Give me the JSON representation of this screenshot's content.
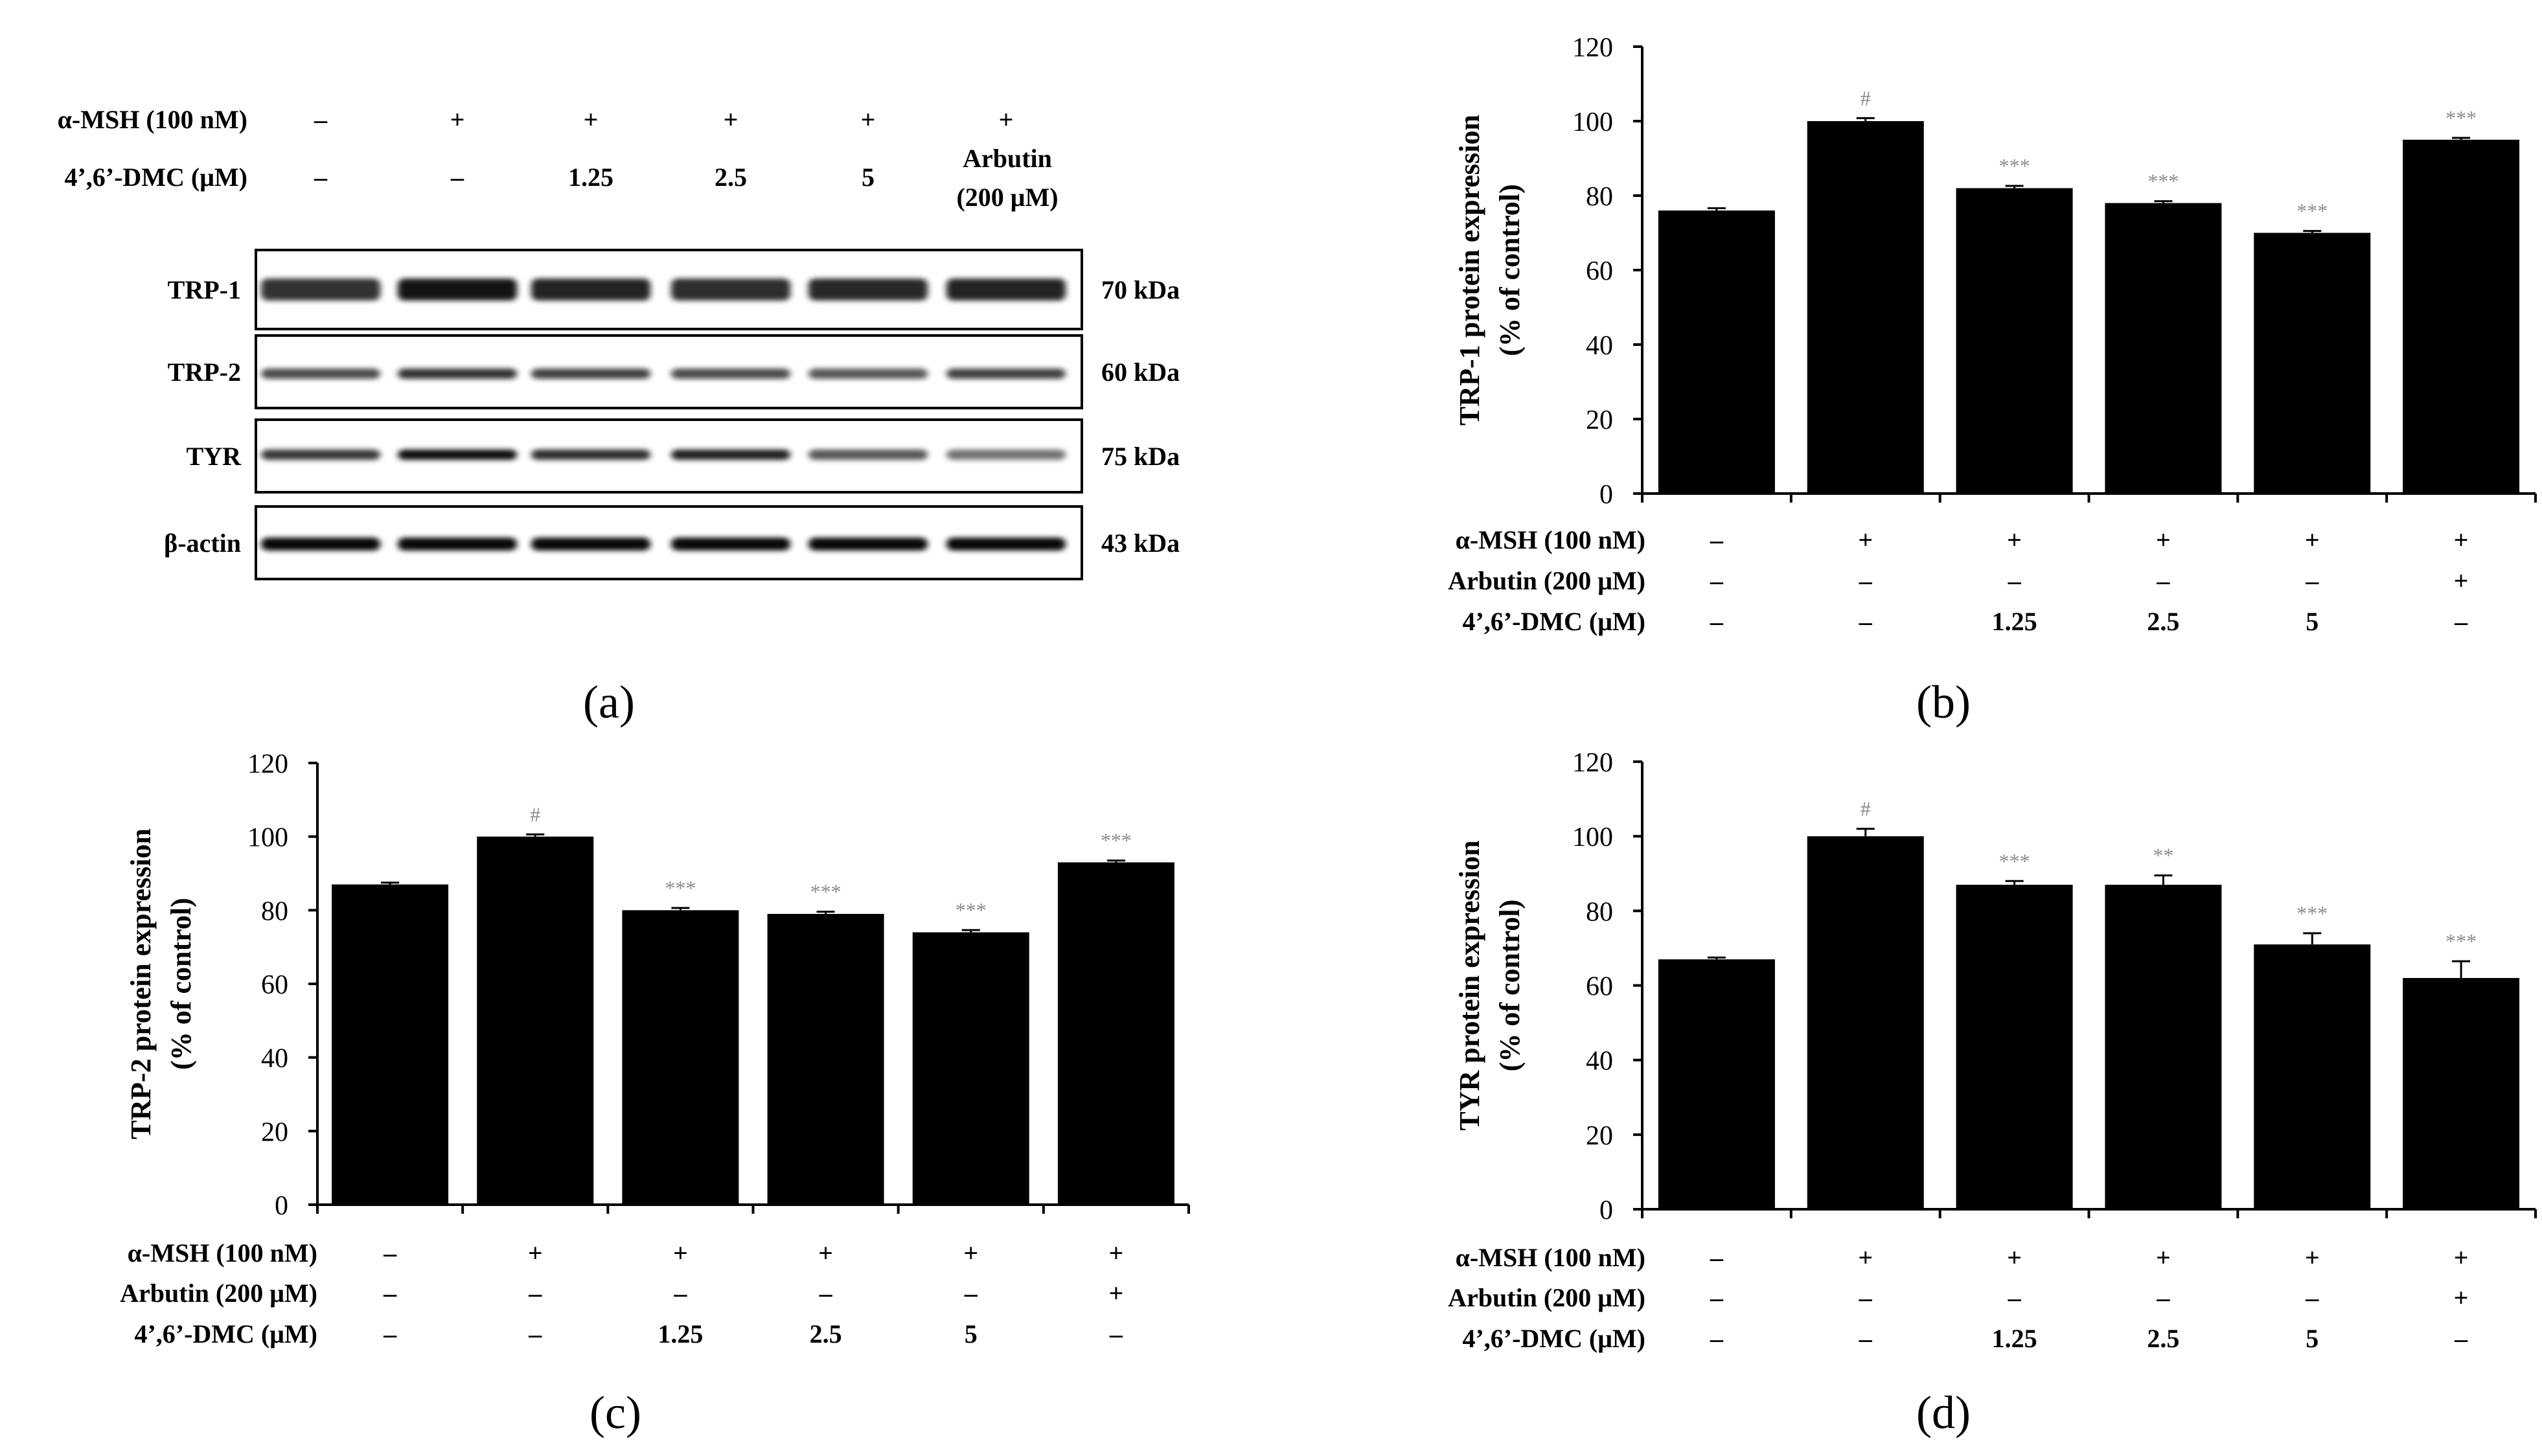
{
  "western_blot": {
    "label": "(a)",
    "condition_rows": [
      {
        "label": "α-MSH (100 nM)",
        "values": [
          "–",
          "+",
          "+",
          "+",
          "+",
          "+"
        ]
      },
      {
        "label": "4’,6’-DMC (μM)",
        "values": [
          "–",
          "–",
          "1.25",
          "2.5",
          "5",
          ""
        ]
      }
    ],
    "arbutin_label": [
      "Arbutin",
      "(200 μM)"
    ],
    "bands": [
      {
        "protein": "TRP-1",
        "size": "70 kDa"
      },
      {
        "protein": "TRP-2",
        "size": "60 kDa"
      },
      {
        "protein": "TYR",
        "size": "75 kDa"
      },
      {
        "protein": "β-actin",
        "size": "43 kDa"
      }
    ]
  },
  "chart_data": [
    {
      "panel": "(b)",
      "type": "bar",
      "ylabel": [
        "TRP-1 protein expression",
        "(% of control)"
      ],
      "ylim": [
        0,
        120
      ],
      "yticks": [
        "0",
        "20",
        "40",
        "60",
        "80",
        "100",
        "120"
      ],
      "values": [
        76,
        100,
        82,
        78,
        70,
        95
      ],
      "errors": [
        0.6,
        0.8,
        0.6,
        0.5,
        0.5,
        0.5
      ],
      "annotations": [
        "",
        "#",
        "***",
        "***",
        "***",
        "***"
      ],
      "condition_rows": [
        {
          "label": "α-MSH (100 nM)",
          "values": [
            "–",
            "+",
            "+",
            "+",
            "+",
            "+"
          ]
        },
        {
          "label": "Arbutin (200 μM)",
          "values": [
            "–",
            "–",
            "–",
            "–",
            "–",
            "+"
          ]
        },
        {
          "label": "4’,6’-DMC (μM)",
          "values": [
            "–",
            "–",
            "1.25",
            "2.5",
            "5",
            "–"
          ]
        }
      ]
    },
    {
      "panel": "(c)",
      "type": "bar",
      "ylabel": [
        "TRP-2 protein expression",
        "(% of control)"
      ],
      "ylim": [
        0,
        120
      ],
      "yticks": [
        "0",
        "20",
        "40",
        "60",
        "80",
        "100",
        "120"
      ],
      "values": [
        87,
        100,
        80,
        79,
        74,
        93
      ],
      "errors": [
        0.5,
        0.6,
        0.6,
        0.6,
        0.6,
        0.5
      ],
      "annotations": [
        "",
        "#",
        "***",
        "***",
        "***",
        "***"
      ],
      "condition_rows": [
        {
          "label": "α-MSH (100 nM)",
          "values": [
            "–",
            "+",
            "+",
            "+",
            "+",
            "+"
          ]
        },
        {
          "label": "Arbutin (200 μM)",
          "values": [
            "–",
            "–",
            "–",
            "–",
            "–",
            "+"
          ]
        },
        {
          "label": "4’,6’-DMC (μM)",
          "values": [
            "–",
            "–",
            "1.25",
            "2.5",
            "5",
            "–"
          ]
        }
      ]
    },
    {
      "panel": "(d)",
      "type": "bar",
      "ylabel": [
        "TYR protein expression",
        "(% of control)"
      ],
      "ylim": [
        0,
        120
      ],
      "yticks": [
        "0",
        "20",
        "40",
        "60",
        "80",
        "100",
        "120"
      ],
      "values": [
        67,
        100,
        87,
        87,
        71,
        62
      ],
      "errors": [
        0.5,
        2.0,
        1.0,
        2.5,
        3.0,
        4.5
      ],
      "annotations": [
        "",
        "#",
        "***",
        "**",
        "***",
        "***"
      ],
      "condition_rows": [
        {
          "label": "α-MSH (100 nM)",
          "values": [
            "–",
            "+",
            "+",
            "+",
            "+",
            "+"
          ]
        },
        {
          "label": "Arbutin (200 μM)",
          "values": [
            "–",
            "–",
            "–",
            "–",
            "–",
            "+"
          ]
        },
        {
          "label": "4’,6’-DMC (μM)",
          "values": [
            "–",
            "–",
            "1.25",
            "2.5",
            "5",
            "–"
          ]
        }
      ]
    }
  ]
}
